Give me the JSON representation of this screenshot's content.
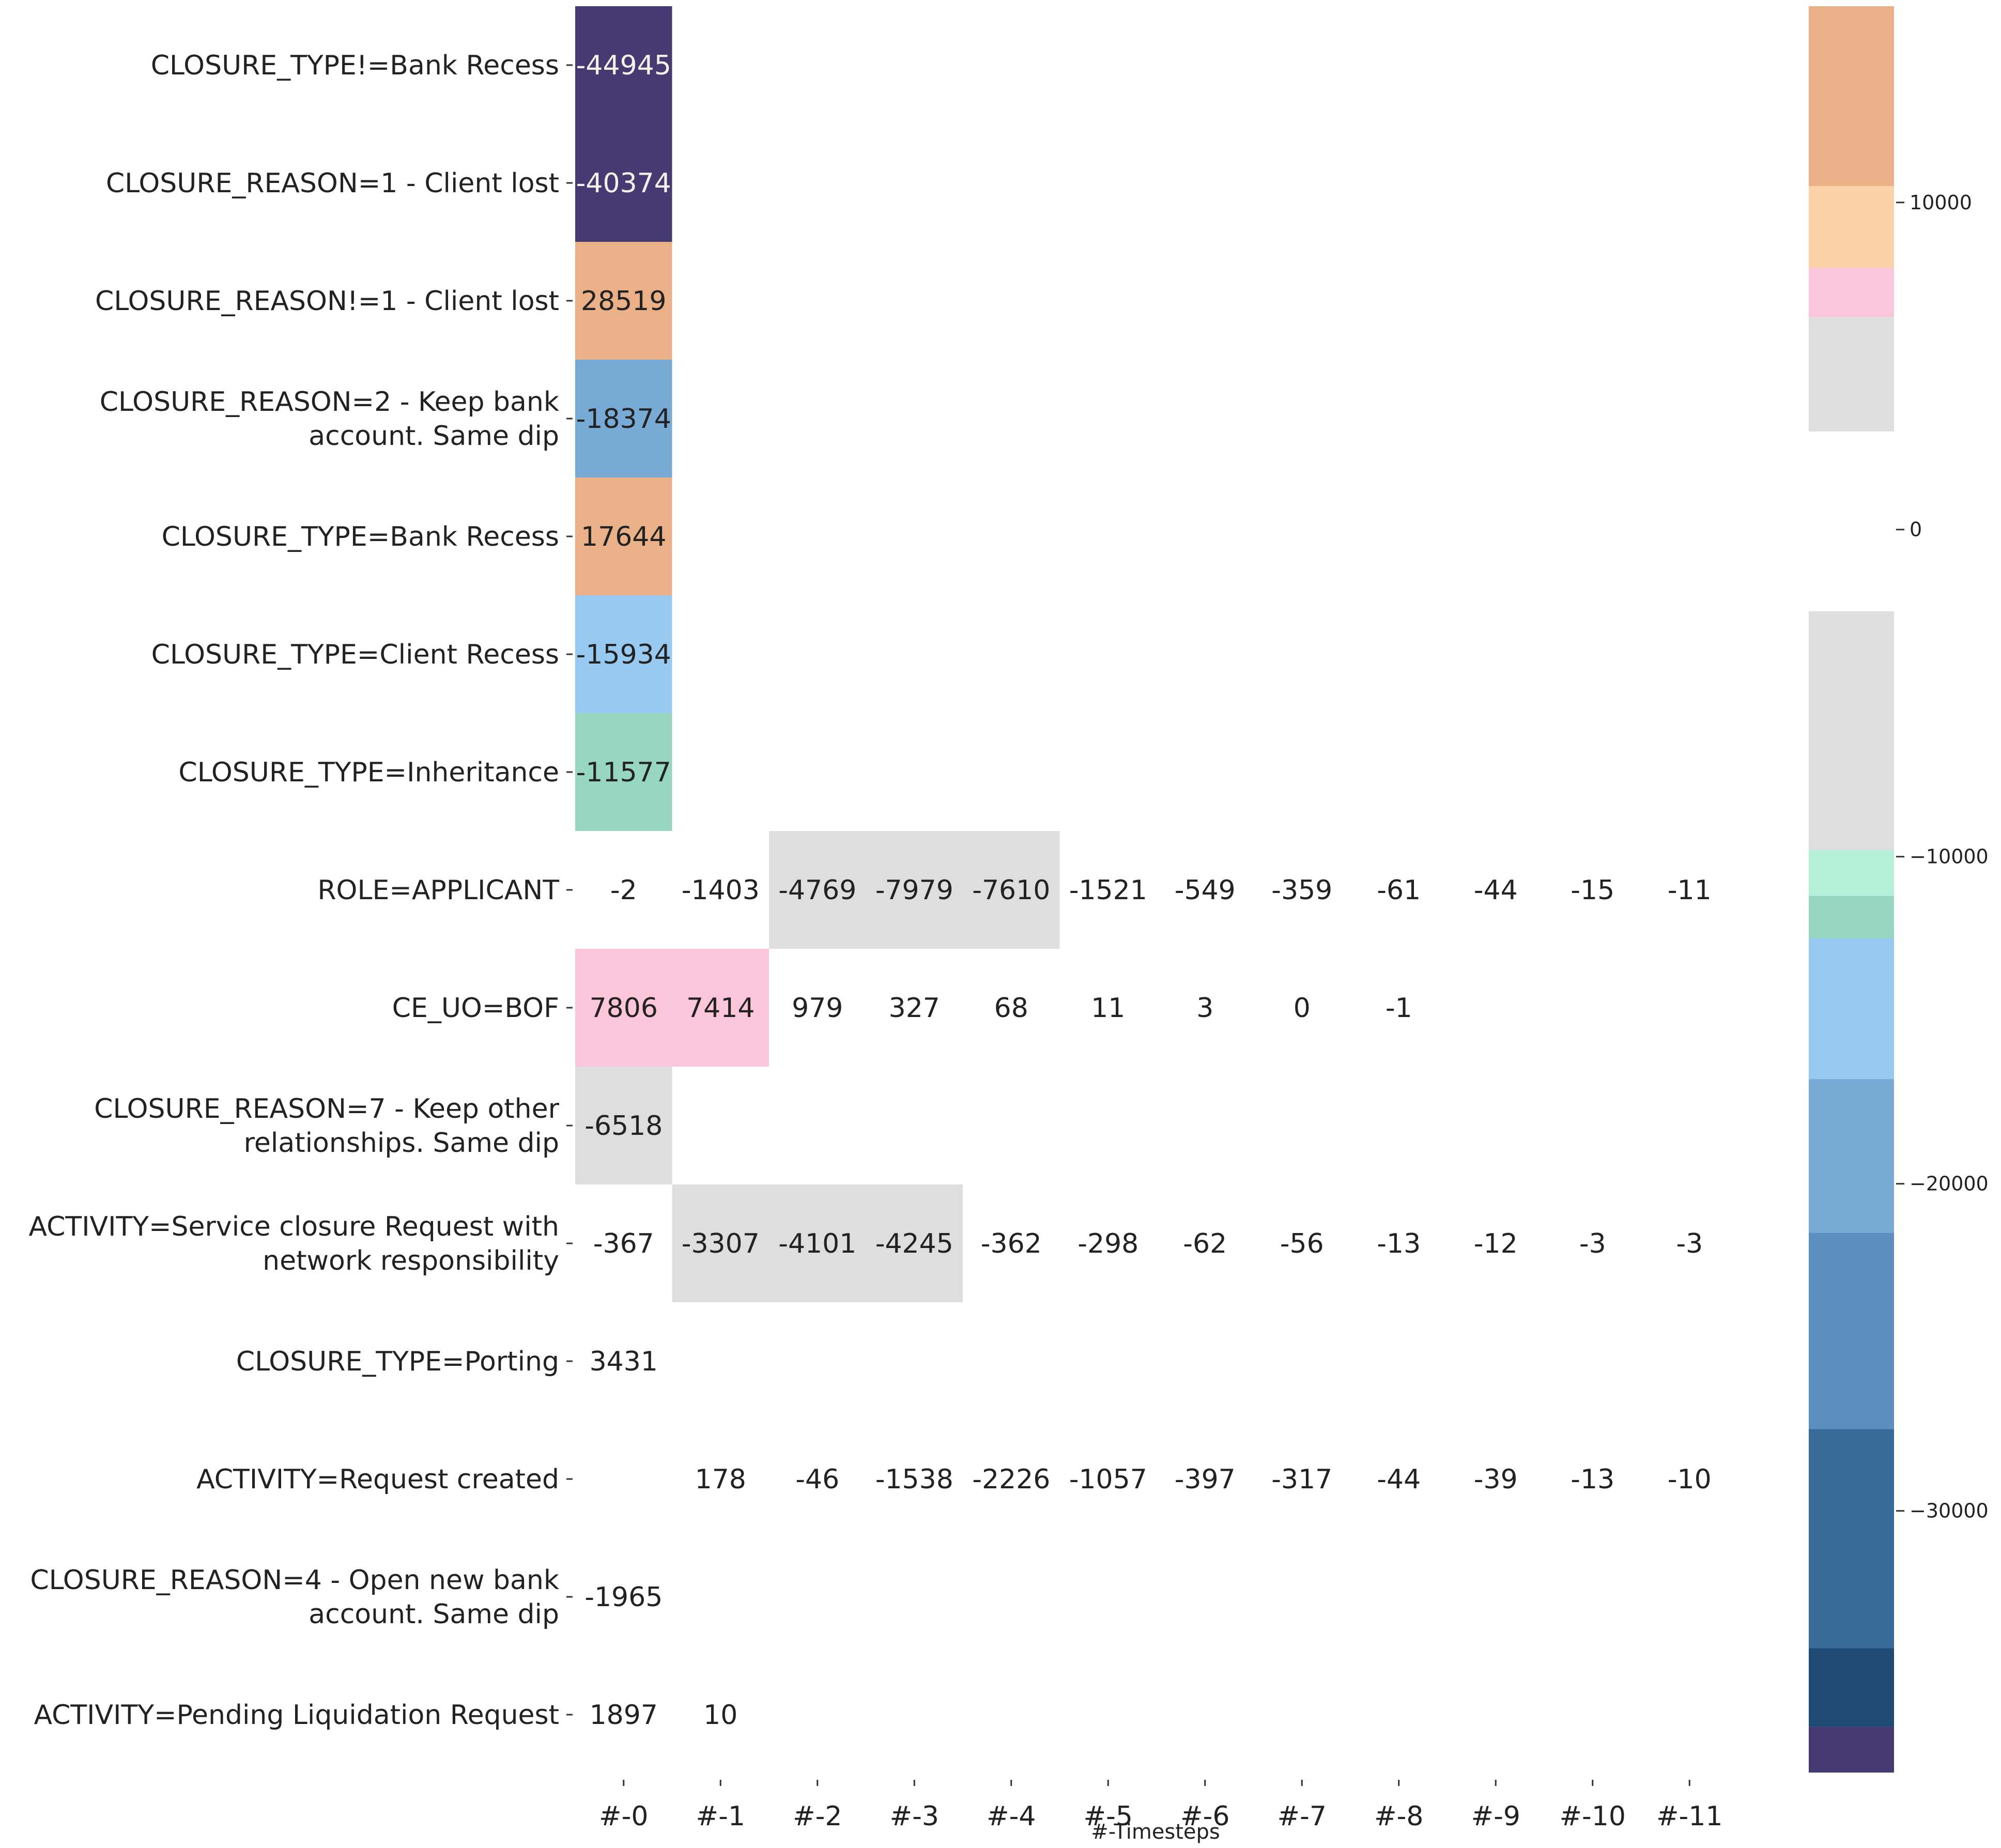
{
  "chart_data": {
    "type": "heatmap",
    "title": "",
    "xlabel": "#-Timesteps",
    "ylabel": "",
    "columns": [
      "#-0",
      "#-1",
      "#-2",
      "#-3",
      "#-4",
      "#-5",
      "#-6",
      "#-7",
      "#-8",
      "#-9",
      "#-10",
      "#-11"
    ],
    "rows": [
      {
        "label": "CLOSURE_TYPE!=Bank Recess",
        "values": [
          -44945,
          null,
          null,
          null,
          null,
          null,
          null,
          null,
          null,
          null,
          null,
          null
        ]
      },
      {
        "label": "CLOSURE_REASON=1 - Client lost",
        "values": [
          -40374,
          null,
          null,
          null,
          null,
          null,
          null,
          null,
          null,
          null,
          null,
          null
        ]
      },
      {
        "label": "CLOSURE_REASON!=1 - Client lost",
        "values": [
          28519,
          null,
          null,
          null,
          null,
          null,
          null,
          null,
          null,
          null,
          null,
          null
        ]
      },
      {
        "label": "CLOSURE_REASON=2 - Keep bank\naccount. Same dip",
        "values": [
          -18374,
          null,
          null,
          null,
          null,
          null,
          null,
          null,
          null,
          null,
          null,
          null
        ]
      },
      {
        "label": "CLOSURE_TYPE=Bank Recess",
        "values": [
          17644,
          null,
          null,
          null,
          null,
          null,
          null,
          null,
          null,
          null,
          null,
          null
        ]
      },
      {
        "label": "CLOSURE_TYPE=Client Recess",
        "values": [
          -15934,
          null,
          null,
          null,
          null,
          null,
          null,
          null,
          null,
          null,
          null,
          null
        ]
      },
      {
        "label": "CLOSURE_TYPE=Inheritance",
        "values": [
          -11577,
          null,
          null,
          null,
          null,
          null,
          null,
          null,
          null,
          null,
          null,
          null
        ]
      },
      {
        "label": "ROLE=APPLICANT",
        "values": [
          -2,
          -1403,
          -4769,
          -7979,
          -7610,
          -1521,
          -549,
          -359,
          -61,
          -44,
          -15,
          -11
        ]
      },
      {
        "label": "CE_UO=BOF",
        "values": [
          7806,
          7414,
          979,
          327,
          68,
          11,
          3,
          0,
          -1,
          null,
          null,
          null
        ]
      },
      {
        "label": "CLOSURE_REASON=7 - Keep other\nrelationships. Same dip",
        "values": [
          -6518,
          null,
          null,
          null,
          null,
          null,
          null,
          null,
          null,
          null,
          null,
          null
        ]
      },
      {
        "label": "ACTIVITY=Service closure Request with\nnetwork responsibility",
        "values": [
          -367,
          -3307,
          -4101,
          -4245,
          -362,
          -298,
          -62,
          -56,
          -13,
          -12,
          -3,
          -3
        ]
      },
      {
        "label": "CLOSURE_TYPE=Porting",
        "values": [
          3431,
          null,
          null,
          null,
          null,
          null,
          null,
          null,
          null,
          null,
          null,
          null
        ]
      },
      {
        "label": "ACTIVITY=Request created",
        "values": [
          null,
          178,
          -46,
          -1538,
          -2226,
          -1057,
          -397,
          -317,
          -44,
          -39,
          -13,
          -10
        ]
      },
      {
        "label": "CLOSURE_REASON=4 - Open new bank\naccount. Same dip",
        "values": [
          -1965,
          null,
          null,
          null,
          null,
          null,
          null,
          null,
          null,
          null,
          null,
          null
        ]
      },
      {
        "label": "ACTIVITY=Pending Liquidation Request",
        "values": [
          1897,
          10,
          null,
          null,
          null,
          null,
          null,
          null,
          null,
          null,
          null,
          null
        ]
      }
    ],
    "colorbar": {
      "vmin": -38000,
      "vmax": 16000,
      "ticks": [
        10000,
        0,
        -10000,
        -20000,
        -30000
      ],
      "tick_labels": [
        "10000",
        "0",
        "−10000",
        "−20000",
        "−30000"
      ]
    },
    "colors": {
      "dark_purple": "#463a72",
      "navy": "#1f4a73",
      "dark_blue": "#376a97",
      "mid_blue": "#5a8fbf",
      "blue": "#78aad6",
      "light_blue": "#98c9f1",
      "teal": "#97d6c0",
      "mint": "#b7f0da",
      "light_grey": "#dedede",
      "pink": "#fbc5da",
      "peach": "#fdd1a8",
      "orange": "#eab188"
    },
    "grid": false
  }
}
